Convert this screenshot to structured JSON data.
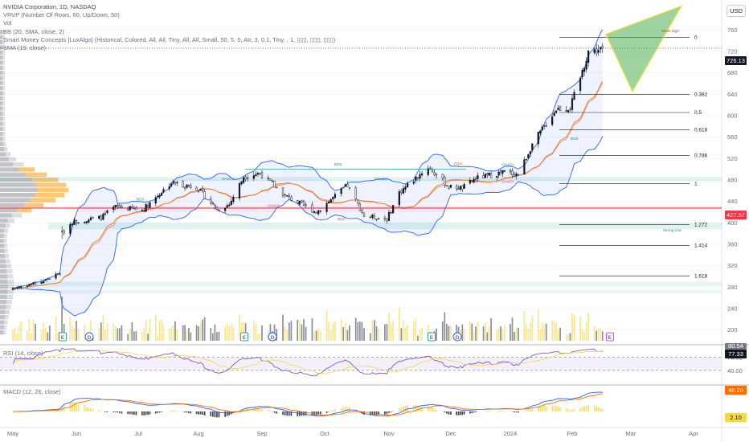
{
  "legend": {
    "title": "NVIDIA Corporation, 1D, NASDAQ",
    "indicators": [
      "VRVP (Number Of Rows, 60, Up/Down, 50)",
      "Vol",
      "BB (20, SMA, close, 2)",
      "Smart Money Concepts [LuxAlgo] (Historical, Colored, All, All, Tiny, All, All, Small, 50, 5, 5, Atr, 3, 0.1, Tiny, , 1, ▯▯▯, ▯▯▯, ▯▯▯)",
      "SMA (19, close)"
    ]
  },
  "currency_button": "USD",
  "price_tags": {
    "last": {
      "value": "726.13",
      "color": "#131722"
    },
    "level": {
      "value": "427.57",
      "color": "#f23645"
    },
    "rsi": {
      "value": "77.33",
      "color": "#131722"
    },
    "rsi_ma": {
      "value": "80.54",
      "color": "#787b86"
    },
    "macd": {
      "value": "46.20",
      "color": "#ff6d00"
    },
    "macd_hist": {
      "value": "2.10",
      "color": "#f2d94e"
    }
  },
  "rsi": {
    "label": "RSI (14, close)",
    "axis_labels": [
      "74.01",
      "40.00"
    ]
  },
  "macd": {
    "label": "MACD (12, 26, close)"
  },
  "x_axis": {
    "labels": [
      "May",
      "Jun",
      "Jul",
      "Aug",
      "Sep",
      "Oct",
      "Nov",
      "Dec",
      "2024",
      "Feb",
      "Mar",
      "Apr"
    ]
  },
  "event_badges": [
    {
      "kind": "E",
      "color": "#26a69a"
    },
    {
      "kind": "D",
      "color": "#2962ff"
    },
    {
      "kind": "E",
      "color": "#26a69a"
    },
    {
      "kind": "D",
      "color": "#2962ff"
    },
    {
      "kind": "E",
      "color": "#26a69a"
    },
    {
      "kind": "D",
      "color": "#2962ff"
    },
    {
      "kind": "E",
      "color": "#e040fb"
    }
  ],
  "chart_data": {
    "type": "candlestick",
    "symbol": "NVIDIA Corporation, 1D, NASDAQ",
    "ylim": [
      180,
      810
    ],
    "y_ticks": [
      200,
      240,
      280,
      320,
      360,
      400,
      440,
      480,
      520,
      560,
      600,
      640,
      680,
      720,
      760
    ],
    "waypoints": [
      {
        "date": "2023-05-01",
        "close": 278
      },
      {
        "date": "2023-05-15",
        "close": 290
      },
      {
        "date": "2023-05-24",
        "close": 306
      },
      {
        "date": "2023-05-25",
        "close": 380
      },
      {
        "date": "2023-05-30",
        "close": 402
      },
      {
        "date": "2023-06-13",
        "close": 410
      },
      {
        "date": "2023-06-20",
        "close": 430
      },
      {
        "date": "2023-07-03",
        "close": 424
      },
      {
        "date": "2023-07-18",
        "close": 475
      },
      {
        "date": "2023-07-31",
        "close": 467
      },
      {
        "date": "2023-08-10",
        "close": 425
      },
      {
        "date": "2023-08-16",
        "close": 434
      },
      {
        "date": "2023-08-23",
        "close": 486
      },
      {
        "date": "2023-08-31",
        "close": 493
      },
      {
        "date": "2023-09-12",
        "close": 451
      },
      {
        "date": "2023-09-20",
        "close": 434
      },
      {
        "date": "2023-09-27",
        "close": 420
      },
      {
        "date": "2023-10-12",
        "close": 470
      },
      {
        "date": "2023-10-20",
        "close": 413
      },
      {
        "date": "2023-10-31",
        "close": 407
      },
      {
        "date": "2023-11-06",
        "close": 457
      },
      {
        "date": "2023-11-20",
        "close": 504
      },
      {
        "date": "2023-11-30",
        "close": 467
      },
      {
        "date": "2023-12-07",
        "close": 465
      },
      {
        "date": "2023-12-14",
        "close": 483
      },
      {
        "date": "2023-12-29",
        "close": 495
      },
      {
        "date": "2024-01-05",
        "close": 490
      },
      {
        "date": "2024-01-12",
        "close": 547
      },
      {
        "date": "2024-01-24",
        "close": 613
      },
      {
        "date": "2024-01-31",
        "close": 615
      },
      {
        "date": "2024-02-06",
        "close": 682
      },
      {
        "date": "2024-02-09",
        "close": 721
      },
      {
        "date": "2024-02-13",
        "close": 721
      },
      {
        "date": "2024-02-16",
        "close": 726.13
      }
    ],
    "last_close": 726.13,
    "horizontal_level": 427.57,
    "fibonacci": [
      {
        "ratio": "0",
        "price": 746
      },
      {
        "ratio": "0.382",
        "price": 640
      },
      {
        "ratio": "0.5",
        "price": 606
      },
      {
        "ratio": "0.618",
        "price": 574
      },
      {
        "ratio": "0.786",
        "price": 526
      },
      {
        "ratio": "1",
        "price": 473
      },
      {
        "ratio": "1.272",
        "price": 397
      },
      {
        "ratio": "1.414",
        "price": 358
      },
      {
        "ratio": "1.618",
        "price": 301
      }
    ],
    "projection": {
      "start": 752,
      "dip": 645,
      "top": 805,
      "upper_edge_end": 770
    },
    "smc_labels": [
      {
        "text": "BOS",
        "color": "#089981"
      },
      {
        "text": "BOS",
        "color": "#089981"
      },
      {
        "text": "CHoCH",
        "color": "#089981"
      },
      {
        "text": "CHoCH",
        "color": "#f23645"
      },
      {
        "text": "BOS",
        "color": "#089981"
      },
      {
        "text": "BOS",
        "color": "#f23645"
      },
      {
        "text": "CHoCH",
        "color": "#089981"
      },
      {
        "text": "EQH",
        "color": "#f23645"
      },
      {
        "text": "CHoCH",
        "color": "#089981"
      },
      {
        "text": "CHoCH",
        "color": "#f23645"
      },
      {
        "text": "BOS",
        "color": "#089981"
      },
      {
        "text": "Weak High",
        "color": "#f23645"
      },
      {
        "text": "Strong Low",
        "color": "#089981"
      }
    ],
    "colors": {
      "up": "#131722",
      "down": "#ffffff",
      "bb": "#2962ff",
      "sma": "#f57c00",
      "rsi": "#7e57c2",
      "macd": "#2962ff",
      "signal": "#ff6d00"
    }
  }
}
